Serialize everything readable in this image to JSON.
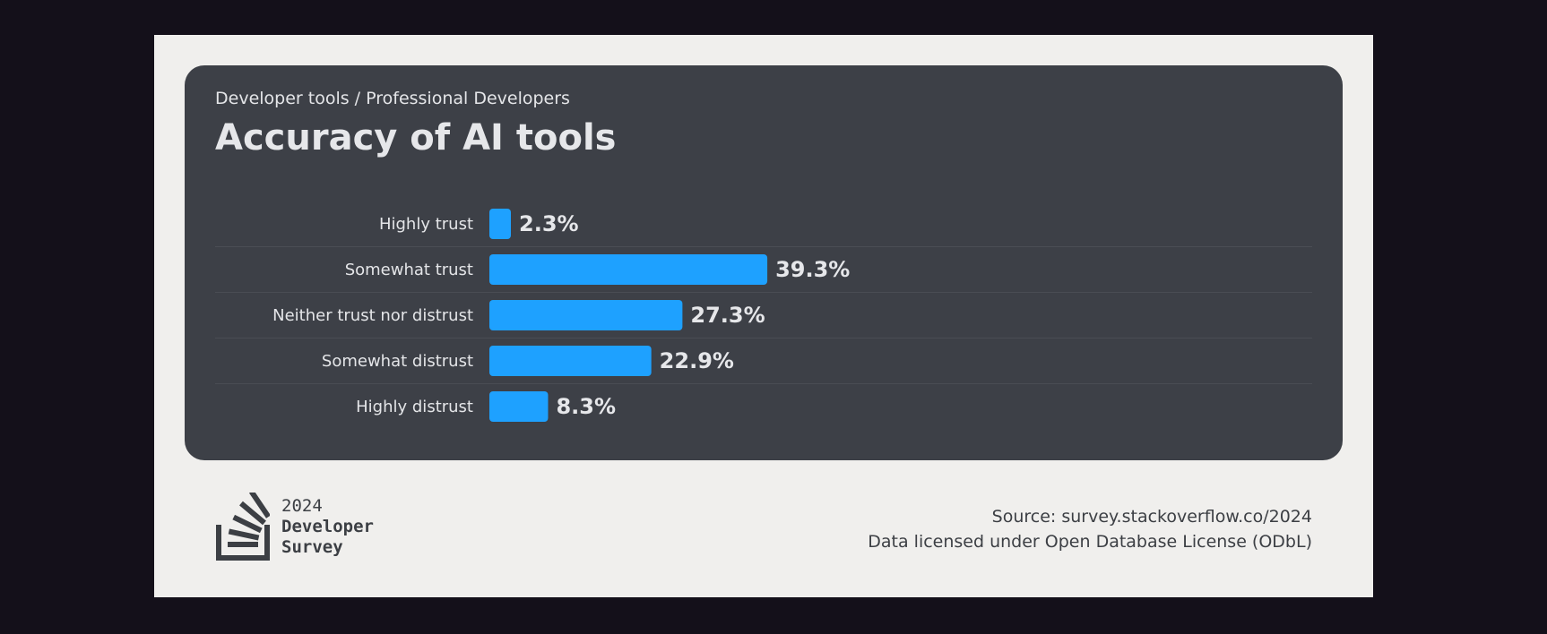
{
  "header": {
    "subtitle": "Developer tools / Professional Developers",
    "title": "Accuracy of AI tools"
  },
  "chart_data": {
    "type": "bar",
    "orientation": "horizontal",
    "title": "Accuracy of AI tools",
    "subtitle": "Developer tools / Professional Developers",
    "categories": [
      "Highly trust",
      "Somewhat trust",
      "Neither trust nor distrust",
      "Somewhat distrust",
      "Highly distrust"
    ],
    "values": [
      2.3,
      39.3,
      27.3,
      22.9,
      8.3
    ],
    "value_labels": [
      "2.3%",
      "39.3%",
      "27.3%",
      "22.9%",
      "8.3%"
    ],
    "unit": "%",
    "bar_color": "#1ea1ff",
    "grid": false
  },
  "footer": {
    "logo_year": "2024",
    "logo_line1": "Developer",
    "logo_line2": "Survey",
    "source": "Source: survey.stackoverflow.co/2024",
    "license": "Data licensed under Open Database License (ODbL)"
  }
}
